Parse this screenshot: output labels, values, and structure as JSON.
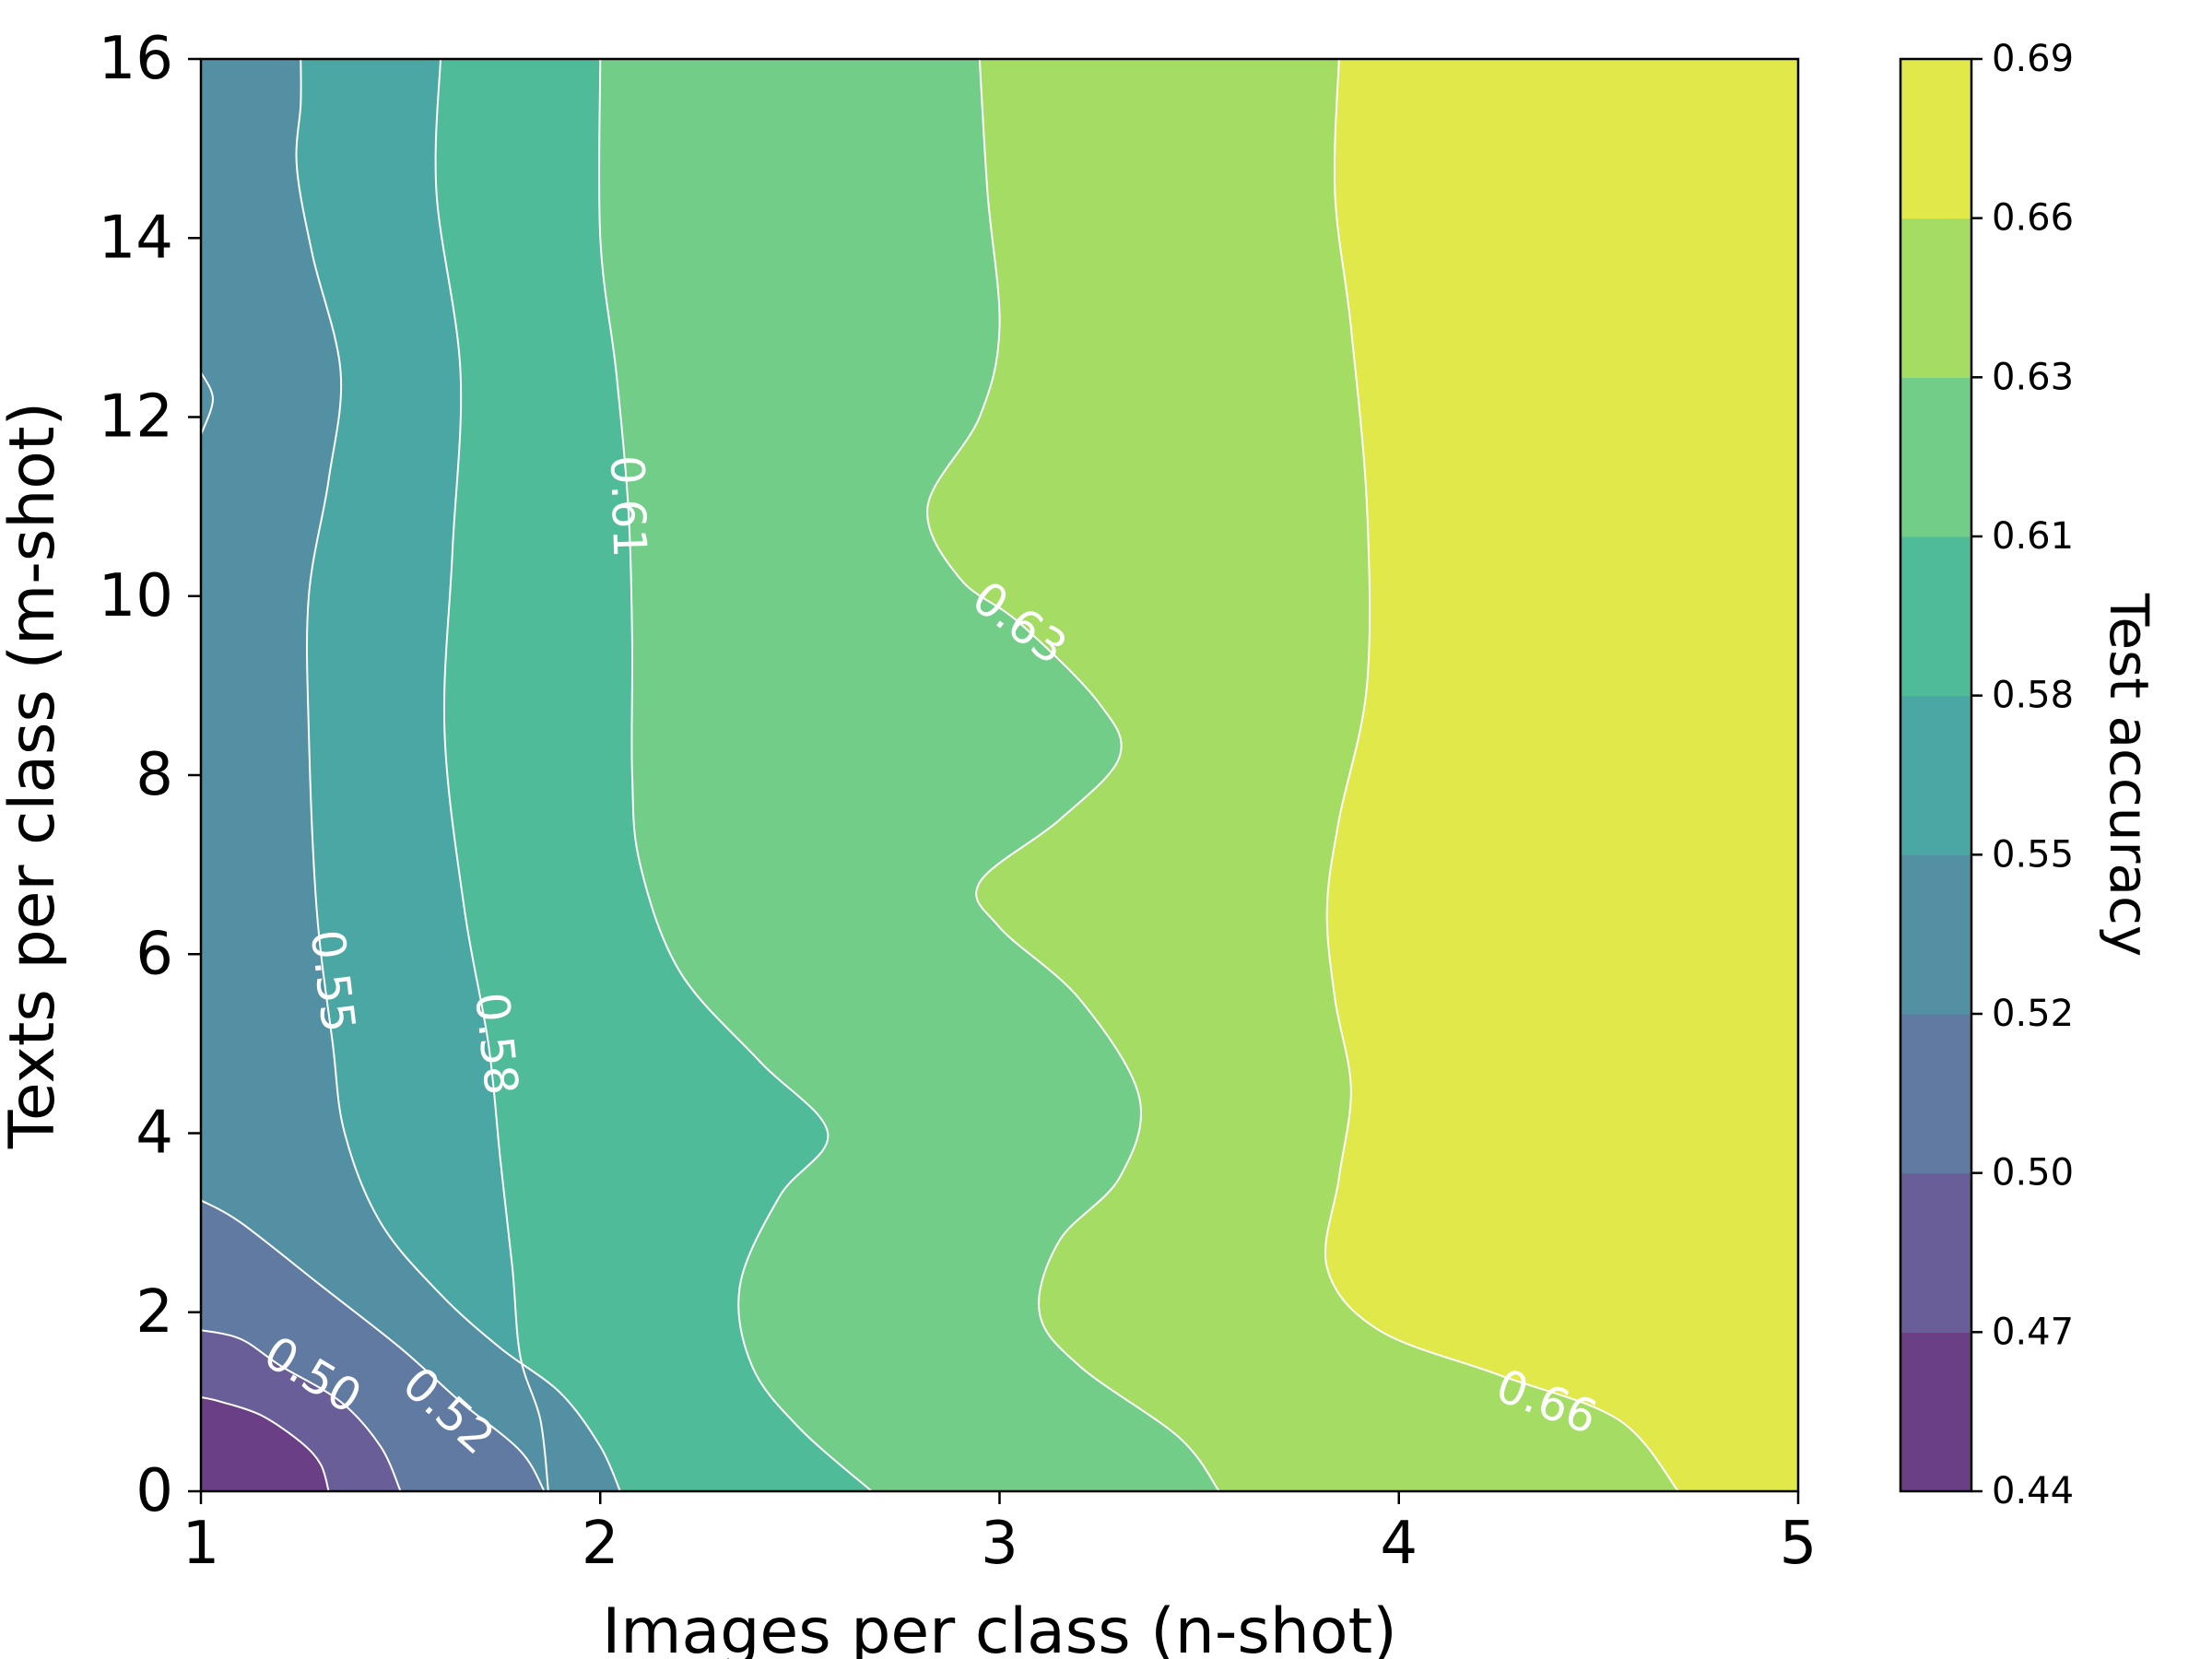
{
  "chart_data": {
    "type": "heatmap",
    "subtype": "filled-contour",
    "title": "",
    "xlabel": "Images per class (n-shot)",
    "ylabel": "Texts per class (m-shot)",
    "xlim": [
      1,
      5
    ],
    "ylim": [
      0,
      16
    ],
    "xticks": [
      "1",
      "2",
      "3",
      "4",
      "5"
    ],
    "yticks": [
      "0",
      "2",
      "4",
      "6",
      "8",
      "10",
      "12",
      "14",
      "16"
    ],
    "colorbar": {
      "label": "Test accuracy",
      "levels": [
        0.44,
        0.47,
        0.5,
        0.52,
        0.55,
        0.58,
        0.61,
        0.63,
        0.66,
        0.69
      ],
      "tick_labels": [
        "0.44",
        "0.47",
        "0.50",
        "0.52",
        "0.55",
        "0.58",
        "0.61",
        "0.63",
        "0.66",
        "0.69"
      ],
      "colors": [
        "#6b3f85",
        "#6a5e99",
        "#607aa1",
        "#5490a4",
        "#4ba7a4",
        "#50bb99",
        "#72cd89",
        "#a4dc64",
        "#e0e84a"
      ]
    },
    "contour_labels": [
      {
        "text": "0.50",
        "x": 1.28,
        "y": 1.3
      },
      {
        "text": "0.52",
        "x": 1.62,
        "y": 0.9
      },
      {
        "text": "0.55",
        "x": 1.33,
        "y": 5.7
      },
      {
        "text": "0.58",
        "x": 1.74,
        "y": 5.0
      },
      {
        "text": "0.61",
        "x": 2.07,
        "y": 11.0
      },
      {
        "text": "0.63",
        "x": 3.05,
        "y": 9.7
      },
      {
        "text": "0.66",
        "x": 4.37,
        "y": 1.0
      }
    ],
    "contour_lines": [
      {
        "level": 0.47,
        "points": [
          [
            1.0,
            1.05
          ],
          [
            1.05,
            1.0
          ],
          [
            1.15,
            0.85
          ],
          [
            1.25,
            0.55
          ],
          [
            1.3,
            0.3
          ],
          [
            1.32,
            0.0
          ]
        ]
      },
      {
        "level": 0.5,
        "points": [
          [
            1.0,
            1.8
          ],
          [
            1.1,
            1.7
          ],
          [
            1.2,
            1.4
          ],
          [
            1.35,
            1.0
          ],
          [
            1.45,
            0.5
          ],
          [
            1.5,
            0.0
          ]
        ]
      },
      {
        "level": 0.52,
        "points": [
          [
            1.0,
            3.25
          ],
          [
            1.1,
            3.0
          ],
          [
            1.3,
            2.3
          ],
          [
            1.5,
            1.6
          ],
          [
            1.65,
            1.0
          ],
          [
            1.8,
            0.45
          ],
          [
            1.86,
            0.0
          ]
        ]
      },
      {
        "level": 0.55,
        "points": [
          [
            1.0,
            12.5
          ],
          [
            1.03,
            12.2
          ],
          [
            1.0,
            11.8
          ]
        ]
      },
      {
        "level": 0.55,
        "points": [
          [
            1.25,
            16.0
          ],
          [
            1.25,
            15.5
          ],
          [
            1.24,
            14.8
          ],
          [
            1.28,
            13.8
          ],
          [
            1.35,
            12.5
          ],
          [
            1.32,
            11.3
          ],
          [
            1.27,
            10.0
          ],
          [
            1.27,
            8.5
          ],
          [
            1.29,
            6.5
          ],
          [
            1.33,
            5.0
          ],
          [
            1.36,
            4.0
          ],
          [
            1.45,
            3.0
          ],
          [
            1.6,
            2.2
          ],
          [
            1.75,
            1.6
          ],
          [
            1.9,
            1.1
          ],
          [
            2.0,
            0.5
          ],
          [
            2.05,
            0.0
          ]
        ]
      },
      {
        "level": 0.58,
        "points": [
          [
            1.6,
            16.0
          ],
          [
            1.59,
            14.5
          ],
          [
            1.65,
            12.5
          ],
          [
            1.63,
            10.5
          ],
          [
            1.61,
            8.5
          ],
          [
            1.66,
            6.5
          ],
          [
            1.72,
            5.0
          ],
          [
            1.75,
            3.7
          ],
          [
            1.78,
            2.5
          ],
          [
            1.8,
            1.5
          ],
          [
            1.85,
            0.8
          ],
          [
            1.87,
            0.0
          ]
        ]
      },
      {
        "level": 0.61,
        "points": [
          [
            2.0,
            16.0
          ],
          [
            2.0,
            14.0
          ],
          [
            2.04,
            12.5
          ],
          [
            2.07,
            11.0
          ],
          [
            2.08,
            9.5
          ],
          [
            2.08,
            8.0
          ],
          [
            2.1,
            7.0
          ],
          [
            2.2,
            5.8
          ],
          [
            2.4,
            4.8
          ],
          [
            2.57,
            4.0
          ],
          [
            2.45,
            3.3
          ],
          [
            2.35,
            2.3
          ],
          [
            2.38,
            1.4
          ],
          [
            2.5,
            0.7
          ],
          [
            2.68,
            0.0
          ]
        ]
      },
      {
        "level": 0.63,
        "points": [
          [
            2.95,
            16.0
          ],
          [
            2.97,
            14.5
          ],
          [
            3.0,
            13.0
          ],
          [
            2.95,
            12.0
          ],
          [
            2.82,
            11.0
          ],
          [
            2.9,
            10.2
          ],
          [
            3.05,
            9.7
          ],
          [
            3.25,
            8.8
          ],
          [
            3.3,
            8.2
          ],
          [
            3.15,
            7.5
          ],
          [
            2.95,
            6.8
          ],
          [
            3.0,
            6.3
          ],
          [
            3.2,
            5.5
          ],
          [
            3.35,
            4.4
          ],
          [
            3.3,
            3.5
          ],
          [
            3.15,
            2.8
          ],
          [
            3.1,
            2.0
          ],
          [
            3.2,
            1.4
          ],
          [
            3.45,
            0.6
          ],
          [
            3.55,
            0.0
          ]
        ]
      },
      {
        "level": 0.66,
        "points": [
          [
            3.85,
            16.0
          ],
          [
            3.84,
            14.5
          ],
          [
            3.88,
            13.0
          ],
          [
            3.92,
            11.0
          ],
          [
            3.92,
            9.0
          ],
          [
            3.85,
            7.5
          ],
          [
            3.82,
            6.5
          ],
          [
            3.84,
            5.5
          ],
          [
            3.88,
            4.5
          ],
          [
            3.85,
            3.5
          ],
          [
            3.82,
            2.5
          ],
          [
            3.95,
            1.8
          ],
          [
            4.25,
            1.3
          ],
          [
            4.55,
            0.8
          ],
          [
            4.7,
            0.0
          ]
        ]
      }
    ]
  }
}
